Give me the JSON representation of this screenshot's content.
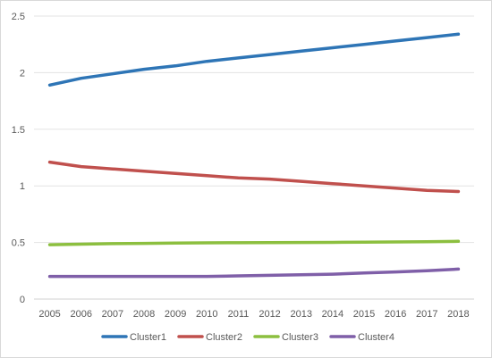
{
  "chart_data": {
    "type": "line",
    "title": "",
    "xlabel": "",
    "ylabel": "",
    "x": [
      "2005",
      "2006",
      "2007",
      "2008",
      "2009",
      "2010",
      "2011",
      "2012",
      "2013",
      "2014",
      "2015",
      "2016",
      "2017",
      "2018"
    ],
    "ylim": [
      0,
      2.5
    ],
    "yticks": [
      "0",
      "0.5",
      "1",
      "1.5",
      "2",
      "2.5"
    ],
    "grid": true,
    "legend_position": "bottom",
    "series": [
      {
        "name": "Cluster1",
        "color": "#2e75b6",
        "values": [
          1.89,
          1.95,
          1.99,
          2.03,
          2.06,
          2.1,
          2.13,
          2.16,
          2.19,
          2.22,
          2.25,
          2.28,
          2.31,
          2.34
        ]
      },
      {
        "name": "Cluster2",
        "color": "#c0504d",
        "values": [
          1.21,
          1.17,
          1.15,
          1.13,
          1.11,
          1.09,
          1.07,
          1.06,
          1.04,
          1.02,
          1.0,
          0.98,
          0.96,
          0.95
        ]
      },
      {
        "name": "Cluster3",
        "color": "#8cbf3f",
        "values": [
          0.48,
          0.485,
          0.49,
          0.492,
          0.495,
          0.497,
          0.498,
          0.499,
          0.5,
          0.501,
          0.503,
          0.505,
          0.507,
          0.51
        ]
      },
      {
        "name": "Cluster4",
        "color": "#7f5fa8",
        "values": [
          0.2,
          0.2,
          0.2,
          0.2,
          0.2,
          0.2,
          0.205,
          0.21,
          0.215,
          0.22,
          0.23,
          0.24,
          0.25,
          0.265
        ]
      }
    ]
  }
}
